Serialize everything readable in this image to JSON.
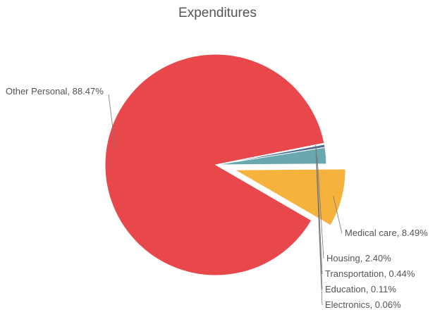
{
  "chart_data": {
    "type": "pie",
    "title": "Expenditures",
    "slices": [
      {
        "label": "Other Personal, 88.47%",
        "name": "Other Personal",
        "value": 88.47,
        "color": "#e8474b",
        "exploded": false
      },
      {
        "label": "Medical care, 8.49%",
        "name": "Medical care",
        "value": 8.49,
        "color": "#f5b33e",
        "exploded": true
      },
      {
        "label": "Housing, 2.40%",
        "name": "Housing",
        "value": 2.4,
        "color": "#6aa8b0",
        "exploded": false
      },
      {
        "label": "Transportation, 0.44%",
        "name": "Transportation",
        "value": 0.44,
        "color": "#4e6b8f",
        "exploded": false
      },
      {
        "label": "Education, 0.11%",
        "name": "Education",
        "value": 0.11,
        "color": "#f0d656",
        "exploded": false
      },
      {
        "label": "Electronics, 0.06%",
        "name": "Electronics",
        "value": 0.06,
        "color": "#8b6f4e",
        "exploded": false
      }
    ],
    "legend": "none",
    "grid": false
  }
}
